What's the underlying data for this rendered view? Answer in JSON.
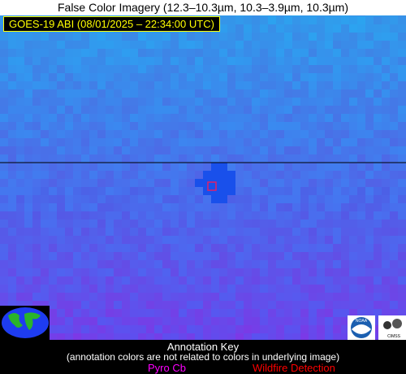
{
  "header": {
    "title": "False Color Imagery (12.3–10.3µm, 10.3–3.9µm, 10.3µm)",
    "timestamp": "GOES-19 ABI (08/01/2025 – 22:34:00 UTC)"
  },
  "logos": [
    "NOAA",
    "CIMSS"
  ],
  "annotation_key": {
    "title": "Annotation Key",
    "note": "(annotation colors are not related to colors in underlying image)",
    "items": [
      "Pyro Cb",
      "Wildfire Detection"
    ]
  }
}
